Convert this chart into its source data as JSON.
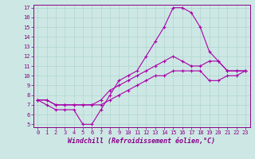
{
  "xlabel": "Windchill (Refroidissement éolien,°C)",
  "background_color": "#cde8e4",
  "grid_color": "#b0d4d0",
  "line_color": "#aa00aa",
  "spine_color": "#880088",
  "xlim": [
    -0.5,
    23.5
  ],
  "ylim": [
    4.7,
    17.3
  ],
  "xticks": [
    0,
    1,
    2,
    3,
    4,
    5,
    6,
    7,
    8,
    9,
    10,
    11,
    12,
    13,
    14,
    15,
    16,
    17,
    18,
    19,
    20,
    21,
    22,
    23
  ],
  "yticks": [
    5,
    6,
    7,
    8,
    9,
    10,
    11,
    12,
    13,
    14,
    15,
    16,
    17
  ],
  "line1_x": [
    0,
    1,
    2,
    3,
    4,
    5,
    6,
    7,
    8,
    9,
    10,
    11,
    12,
    13,
    14,
    15,
    16,
    17,
    18,
    19,
    20,
    21,
    22,
    23
  ],
  "line1_y": [
    7.5,
    7.0,
    6.5,
    6.5,
    6.5,
    5.0,
    5.0,
    6.5,
    8.0,
    9.5,
    10.0,
    10.5,
    12.0,
    13.5,
    15.0,
    17.0,
    17.0,
    16.5,
    15.0,
    12.5,
    11.5,
    10.5,
    10.5,
    10.5
  ],
  "line2_x": [
    0,
    1,
    2,
    3,
    4,
    5,
    6,
    7,
    8,
    9,
    10,
    11,
    12,
    13,
    14,
    15,
    16,
    17,
    18,
    19,
    20,
    21,
    22,
    23
  ],
  "line2_y": [
    7.5,
    7.5,
    7.0,
    7.0,
    7.0,
    7.0,
    7.0,
    7.5,
    8.5,
    9.0,
    9.5,
    10.0,
    10.5,
    11.0,
    11.5,
    12.0,
    11.5,
    11.0,
    11.0,
    11.5,
    11.5,
    10.5,
    10.5,
    10.5
  ],
  "line3_x": [
    0,
    1,
    2,
    3,
    4,
    5,
    6,
    7,
    8,
    9,
    10,
    11,
    12,
    13,
    14,
    15,
    16,
    17,
    18,
    19,
    20,
    21,
    22,
    23
  ],
  "line3_y": [
    7.5,
    7.5,
    7.0,
    7.0,
    7.0,
    7.0,
    7.0,
    7.0,
    7.5,
    8.0,
    8.5,
    9.0,
    9.5,
    10.0,
    10.0,
    10.5,
    10.5,
    10.5,
    10.5,
    9.5,
    9.5,
    10.0,
    10.0,
    10.5
  ],
  "tick_fontsize": 5,
  "xlabel_fontsize": 6,
  "marker_size": 3,
  "line_width": 0.8
}
